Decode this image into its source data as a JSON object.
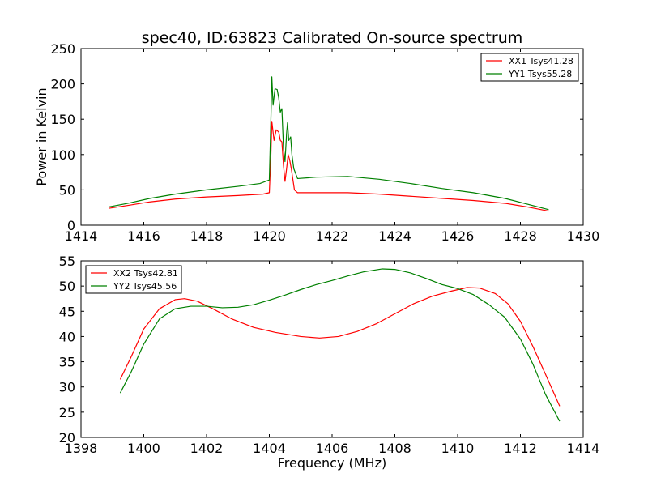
{
  "title": "spec40, ID:63823 Calibrated On-source spectrum",
  "chart_data": [
    {
      "type": "line",
      "xlabel": "",
      "ylabel": "Power in Kelvin",
      "xlim": [
        1414,
        1430
      ],
      "ylim": [
        0,
        250
      ],
      "xticks": [
        "1414",
        "1416",
        "1418",
        "1420",
        "1422",
        "1424",
        "1426",
        "1428",
        "1430"
      ],
      "yticks": [
        "0",
        "50",
        "100",
        "150",
        "200",
        "250"
      ],
      "legend_position": "top-right",
      "grid": false,
      "series": [
        {
          "name": "XX1 Tsys41.28",
          "color": "#ff0000",
          "points": [
            [
              1414.9,
              24
            ],
            [
              1415.5,
              28
            ],
            [
              1416.2,
              33
            ],
            [
              1417.0,
              37
            ],
            [
              1418.0,
              40
            ],
            [
              1419.0,
              42
            ],
            [
              1419.8,
              44
            ],
            [
              1420.0,
              46
            ],
            [
              1420.05,
              100
            ],
            [
              1420.08,
              147
            ],
            [
              1420.15,
              120
            ],
            [
              1420.22,
              135
            ],
            [
              1420.3,
              132
            ],
            [
              1420.35,
              120
            ],
            [
              1420.4,
              118
            ],
            [
              1420.45,
              85
            ],
            [
              1420.5,
              62
            ],
            [
              1420.55,
              80
            ],
            [
              1420.6,
              100
            ],
            [
              1420.65,
              92
            ],
            [
              1420.7,
              80
            ],
            [
              1420.75,
              65
            ],
            [
              1420.8,
              50
            ],
            [
              1420.9,
              46
            ],
            [
              1421.5,
              46
            ],
            [
              1422.5,
              46
            ],
            [
              1423.5,
              44
            ],
            [
              1424.5,
              41
            ],
            [
              1425.5,
              38
            ],
            [
              1426.5,
              35
            ],
            [
              1427.5,
              31
            ],
            [
              1428.2,
              26
            ],
            [
              1428.9,
              20
            ]
          ]
        },
        {
          "name": "YY1 Tsys55.28",
          "color": "#008000",
          "points": [
            [
              1414.9,
              26
            ],
            [
              1415.5,
              31
            ],
            [
              1416.2,
              38
            ],
            [
              1417.0,
              44
            ],
            [
              1418.0,
              50
            ],
            [
              1419.0,
              55
            ],
            [
              1419.7,
              59
            ],
            [
              1420.0,
              64
            ],
            [
              1420.05,
              150
            ],
            [
              1420.08,
              210
            ],
            [
              1420.12,
              170
            ],
            [
              1420.18,
              193
            ],
            [
              1420.25,
              192
            ],
            [
              1420.3,
              180
            ],
            [
              1420.35,
              160
            ],
            [
              1420.4,
              165
            ],
            [
              1420.45,
              110
            ],
            [
              1420.5,
              90
            ],
            [
              1420.55,
              130
            ],
            [
              1420.58,
              145
            ],
            [
              1420.62,
              120
            ],
            [
              1420.68,
              125
            ],
            [
              1420.72,
              100
            ],
            [
              1420.78,
              80
            ],
            [
              1420.9,
              66
            ],
            [
              1421.5,
              68
            ],
            [
              1422.5,
              69
            ],
            [
              1423.5,
              65
            ],
            [
              1424.5,
              59
            ],
            [
              1425.5,
              52
            ],
            [
              1426.5,
              46
            ],
            [
              1427.5,
              38
            ],
            [
              1428.2,
              30
            ],
            [
              1428.9,
              22
            ]
          ]
        }
      ]
    },
    {
      "type": "line",
      "xlabel": "Frequency (MHz)",
      "ylabel": "",
      "xlim": [
        1398,
        1414
      ],
      "ylim": [
        20,
        55
      ],
      "xticks": [
        "1398",
        "1400",
        "1402",
        "1404",
        "1406",
        "1408",
        "1410",
        "1412",
        "1414"
      ],
      "yticks": [
        "20",
        "25",
        "30",
        "35",
        "40",
        "45",
        "50",
        "55"
      ],
      "legend_position": "top-left",
      "grid": false,
      "series": [
        {
          "name": "XX2 Tsys42.81",
          "color": "#ff0000",
          "points": [
            [
              1399.25,
              31.5
            ],
            [
              1399.6,
              36
            ],
            [
              1400.0,
              41.5
            ],
            [
              1400.5,
              45.5
            ],
            [
              1401.0,
              47.3
            ],
            [
              1401.3,
              47.5
            ],
            [
              1401.7,
              47.0
            ],
            [
              1402.2,
              45.5
            ],
            [
              1402.8,
              43.5
            ],
            [
              1403.5,
              41.8
            ],
            [
              1404.2,
              40.8
            ],
            [
              1405.0,
              40.0
            ],
            [
              1405.6,
              39.7
            ],
            [
              1406.2,
              40.0
            ],
            [
              1406.8,
              41.0
            ],
            [
              1407.4,
              42.5
            ],
            [
              1408.0,
              44.5
            ],
            [
              1408.6,
              46.5
            ],
            [
              1409.2,
              48.0
            ],
            [
              1409.8,
              49.0
            ],
            [
              1410.3,
              49.7
            ],
            [
              1410.7,
              49.6
            ],
            [
              1411.2,
              48.5
            ],
            [
              1411.6,
              46.5
            ],
            [
              1412.0,
              43.0
            ],
            [
              1412.4,
              38.0
            ],
            [
              1412.8,
              32.5
            ],
            [
              1413.25,
              26.2
            ]
          ]
        },
        {
          "name": "YY2 Tsys45.56",
          "color": "#008000",
          "points": [
            [
              1399.25,
              28.8
            ],
            [
              1399.6,
              33
            ],
            [
              1400.0,
              38.5
            ],
            [
              1400.5,
              43.5
            ],
            [
              1401.0,
              45.5
            ],
            [
              1401.5,
              46.0
            ],
            [
              1402.0,
              46.0
            ],
            [
              1402.5,
              45.7
            ],
            [
              1403.0,
              45.8
            ],
            [
              1403.5,
              46.3
            ],
            [
              1404.0,
              47.2
            ],
            [
              1404.5,
              48.2
            ],
            [
              1405.0,
              49.3
            ],
            [
              1405.5,
              50.3
            ],
            [
              1406.0,
              51.1
            ],
            [
              1406.5,
              52.0
            ],
            [
              1407.0,
              52.8
            ],
            [
              1407.6,
              53.4
            ],
            [
              1408.0,
              53.3
            ],
            [
              1408.5,
              52.6
            ],
            [
              1409.0,
              51.5
            ],
            [
              1409.5,
              50.3
            ],
            [
              1410.0,
              49.5
            ],
            [
              1410.5,
              48.3
            ],
            [
              1411.0,
              46.3
            ],
            [
              1411.5,
              43.8
            ],
            [
              1412.0,
              39.5
            ],
            [
              1412.4,
              34.5
            ],
            [
              1412.8,
              28.5
            ],
            [
              1413.25,
              23.2
            ]
          ]
        }
      ]
    }
  ]
}
